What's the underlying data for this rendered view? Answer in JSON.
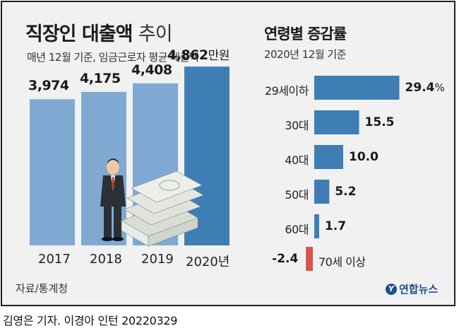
{
  "left_chart": {
    "title_bold": "직장인 대출액",
    "title_light": "추이",
    "subtitle": "매년 12월 기준, 임금근로자 평균 대출액",
    "unit": "만원"
  },
  "right_chart": {
    "title": "연령별 증감률",
    "subtitle": "2020년 12월 기준"
  },
  "chart_data": [
    {
      "type": "bar",
      "title": "직장인 대출액 추이",
      "subtitle": "매년 12월 기준, 임금근로자 평균 대출액",
      "categories": [
        "2017",
        "2018",
        "2019",
        "2020년"
      ],
      "values": [
        3974,
        4175,
        4408,
        4862
      ],
      "value_labels": [
        "3,974",
        "4,175",
        "4,408",
        "4,862"
      ],
      "unit": "만원",
      "highlight_index": 3,
      "colors": {
        "bar": "#7fa9d2",
        "highlight": "#3e7eb5"
      }
    },
    {
      "type": "bar",
      "orientation": "horizontal",
      "title": "연령별 증감률",
      "subtitle": "2020년 12월 기준",
      "categories": [
        "29세이하",
        "30대",
        "40대",
        "50대",
        "60대",
        "70세 이상"
      ],
      "values": [
        29.4,
        15.5,
        10.0,
        5.2,
        1.7,
        -2.4
      ],
      "value_labels": [
        "29.4",
        "15.5",
        "10.0",
        "5.2",
        "1.7",
        "-2.4"
      ],
      "unit": "%",
      "colors": {
        "positive": "#3e7eb5",
        "negative": "#d9534f"
      }
    }
  ],
  "source": "자료/통계청",
  "logo": {
    "mark": "Y",
    "text": "연합뉴스"
  },
  "byline": "김영은 기자. 이경아 인턴  20220329"
}
